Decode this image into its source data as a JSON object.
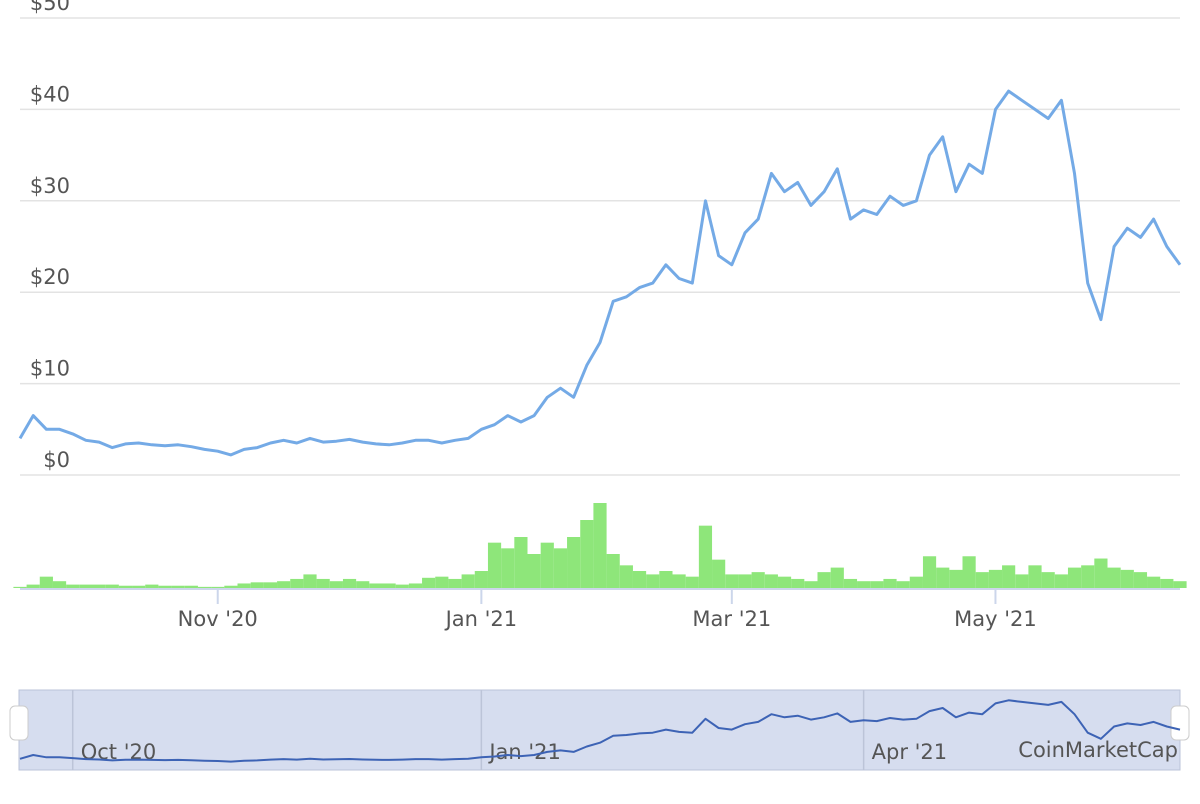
{
  "chart_data": {
    "type": "line",
    "series": [
      {
        "color": "#74aae6",
        "values": [
          4,
          6.5,
          5,
          5,
          4.5,
          3.8,
          3.6,
          3.0,
          3.4,
          3.5,
          3.3,
          3.2,
          3.3,
          3.1,
          2.8,
          2.6,
          2.2,
          2.8,
          3.0,
          3.5,
          3.8,
          3.5,
          4.0,
          3.6,
          3.7,
          3.9,
          3.6,
          3.4,
          3.3,
          3.5,
          3.8,
          3.8,
          3.5,
          3.8,
          4.0,
          5.0,
          5.5,
          6.5,
          5.8,
          6.5,
          8.5,
          9.5,
          8.5,
          12,
          14.5,
          19,
          19.5,
          20.5,
          21,
          23,
          21.5,
          21,
          30,
          24,
          23,
          26.5,
          28,
          33,
          31,
          32,
          29.5,
          31,
          33.5,
          28,
          29,
          28.5,
          30.5,
          29.5,
          30,
          35,
          37,
          31,
          34,
          33,
          40,
          42,
          41,
          40,
          39,
          41,
          33,
          21,
          17,
          25,
          27,
          26,
          28,
          25,
          23
        ]
      }
    ],
    "categories": [
      null,
      null,
      null,
      null,
      null,
      null,
      null,
      null,
      null,
      null,
      null,
      null,
      null,
      null,
      null,
      "Nov '20",
      null,
      null,
      null,
      null,
      null,
      null,
      null,
      null,
      null,
      null,
      null,
      null,
      null,
      null,
      null,
      null,
      null,
      null,
      null,
      "Jan '21",
      null,
      null,
      null,
      null,
      null,
      null,
      null,
      null,
      null,
      null,
      null,
      null,
      null,
      null,
      null,
      null,
      null,
      null,
      "Mar '21",
      null,
      null,
      null,
      null,
      null,
      null,
      null,
      null,
      null,
      null,
      null,
      null,
      null,
      null,
      null,
      null,
      null,
      null,
      null,
      "May '21",
      null,
      null,
      null,
      null,
      null,
      null,
      null,
      null,
      null,
      null,
      null,
      null,
      null,
      null
    ],
    "ylim": [
      0,
      50
    ],
    "yticks": [
      {
        "value": 0,
        "label": "$0"
      },
      {
        "value": 10,
        "label": "$10"
      },
      {
        "value": 20,
        "label": "$20"
      },
      {
        "value": 30,
        "label": "$30"
      },
      {
        "value": 40,
        "label": "$40"
      },
      {
        "value": 50,
        "label": "$50"
      }
    ],
    "grid": true,
    "volume": {
      "color": "#8ee67a",
      "values": [
        1,
        3,
        10,
        6,
        3,
        3,
        3,
        3,
        2,
        2,
        3,
        2,
        2,
        2,
        1,
        1,
        2,
        4,
        5,
        5,
        6,
        8,
        12,
        8,
        6,
        8,
        6,
        4,
        4,
        3,
        4,
        9,
        10,
        8,
        12,
        15,
        40,
        35,
        45,
        30,
        40,
        35,
        45,
        60,
        75,
        30,
        20,
        15,
        12,
        15,
        12,
        10,
        55,
        25,
        12,
        12,
        14,
        12,
        10,
        8,
        6,
        14,
        18,
        8,
        6,
        6,
        8,
        6,
        10,
        28,
        18,
        16,
        28,
        14,
        16,
        20,
        12,
        20,
        14,
        12,
        18,
        20,
        26,
        18,
        16,
        14,
        10,
        8,
        6
      ]
    },
    "navigator": {
      "color": "#3d63b5",
      "fill": "#d6ddef",
      "categories": [
        null,
        null,
        null,
        null,
        "Oct '20",
        null,
        null,
        null,
        null,
        null,
        null,
        null,
        null,
        null,
        null,
        null,
        null,
        null,
        null,
        null,
        null,
        null,
        null,
        null,
        null,
        null,
        null,
        null,
        null,
        null,
        null,
        null,
        null,
        null,
        null,
        "Jan '21",
        null,
        null,
        null,
        null,
        null,
        null,
        null,
        null,
        null,
        null,
        null,
        null,
        null,
        null,
        null,
        null,
        null,
        null,
        null,
        null,
        null,
        null,
        null,
        null,
        null,
        null,
        null,
        null,
        "Apr '21",
        null,
        null,
        null,
        null,
        null,
        null,
        null,
        null,
        null,
        null,
        null,
        null,
        null,
        null,
        null,
        null,
        null,
        null,
        null,
        null,
        null,
        null,
        null,
        null
      ],
      "watermark": "CoinMarketCap"
    }
  }
}
